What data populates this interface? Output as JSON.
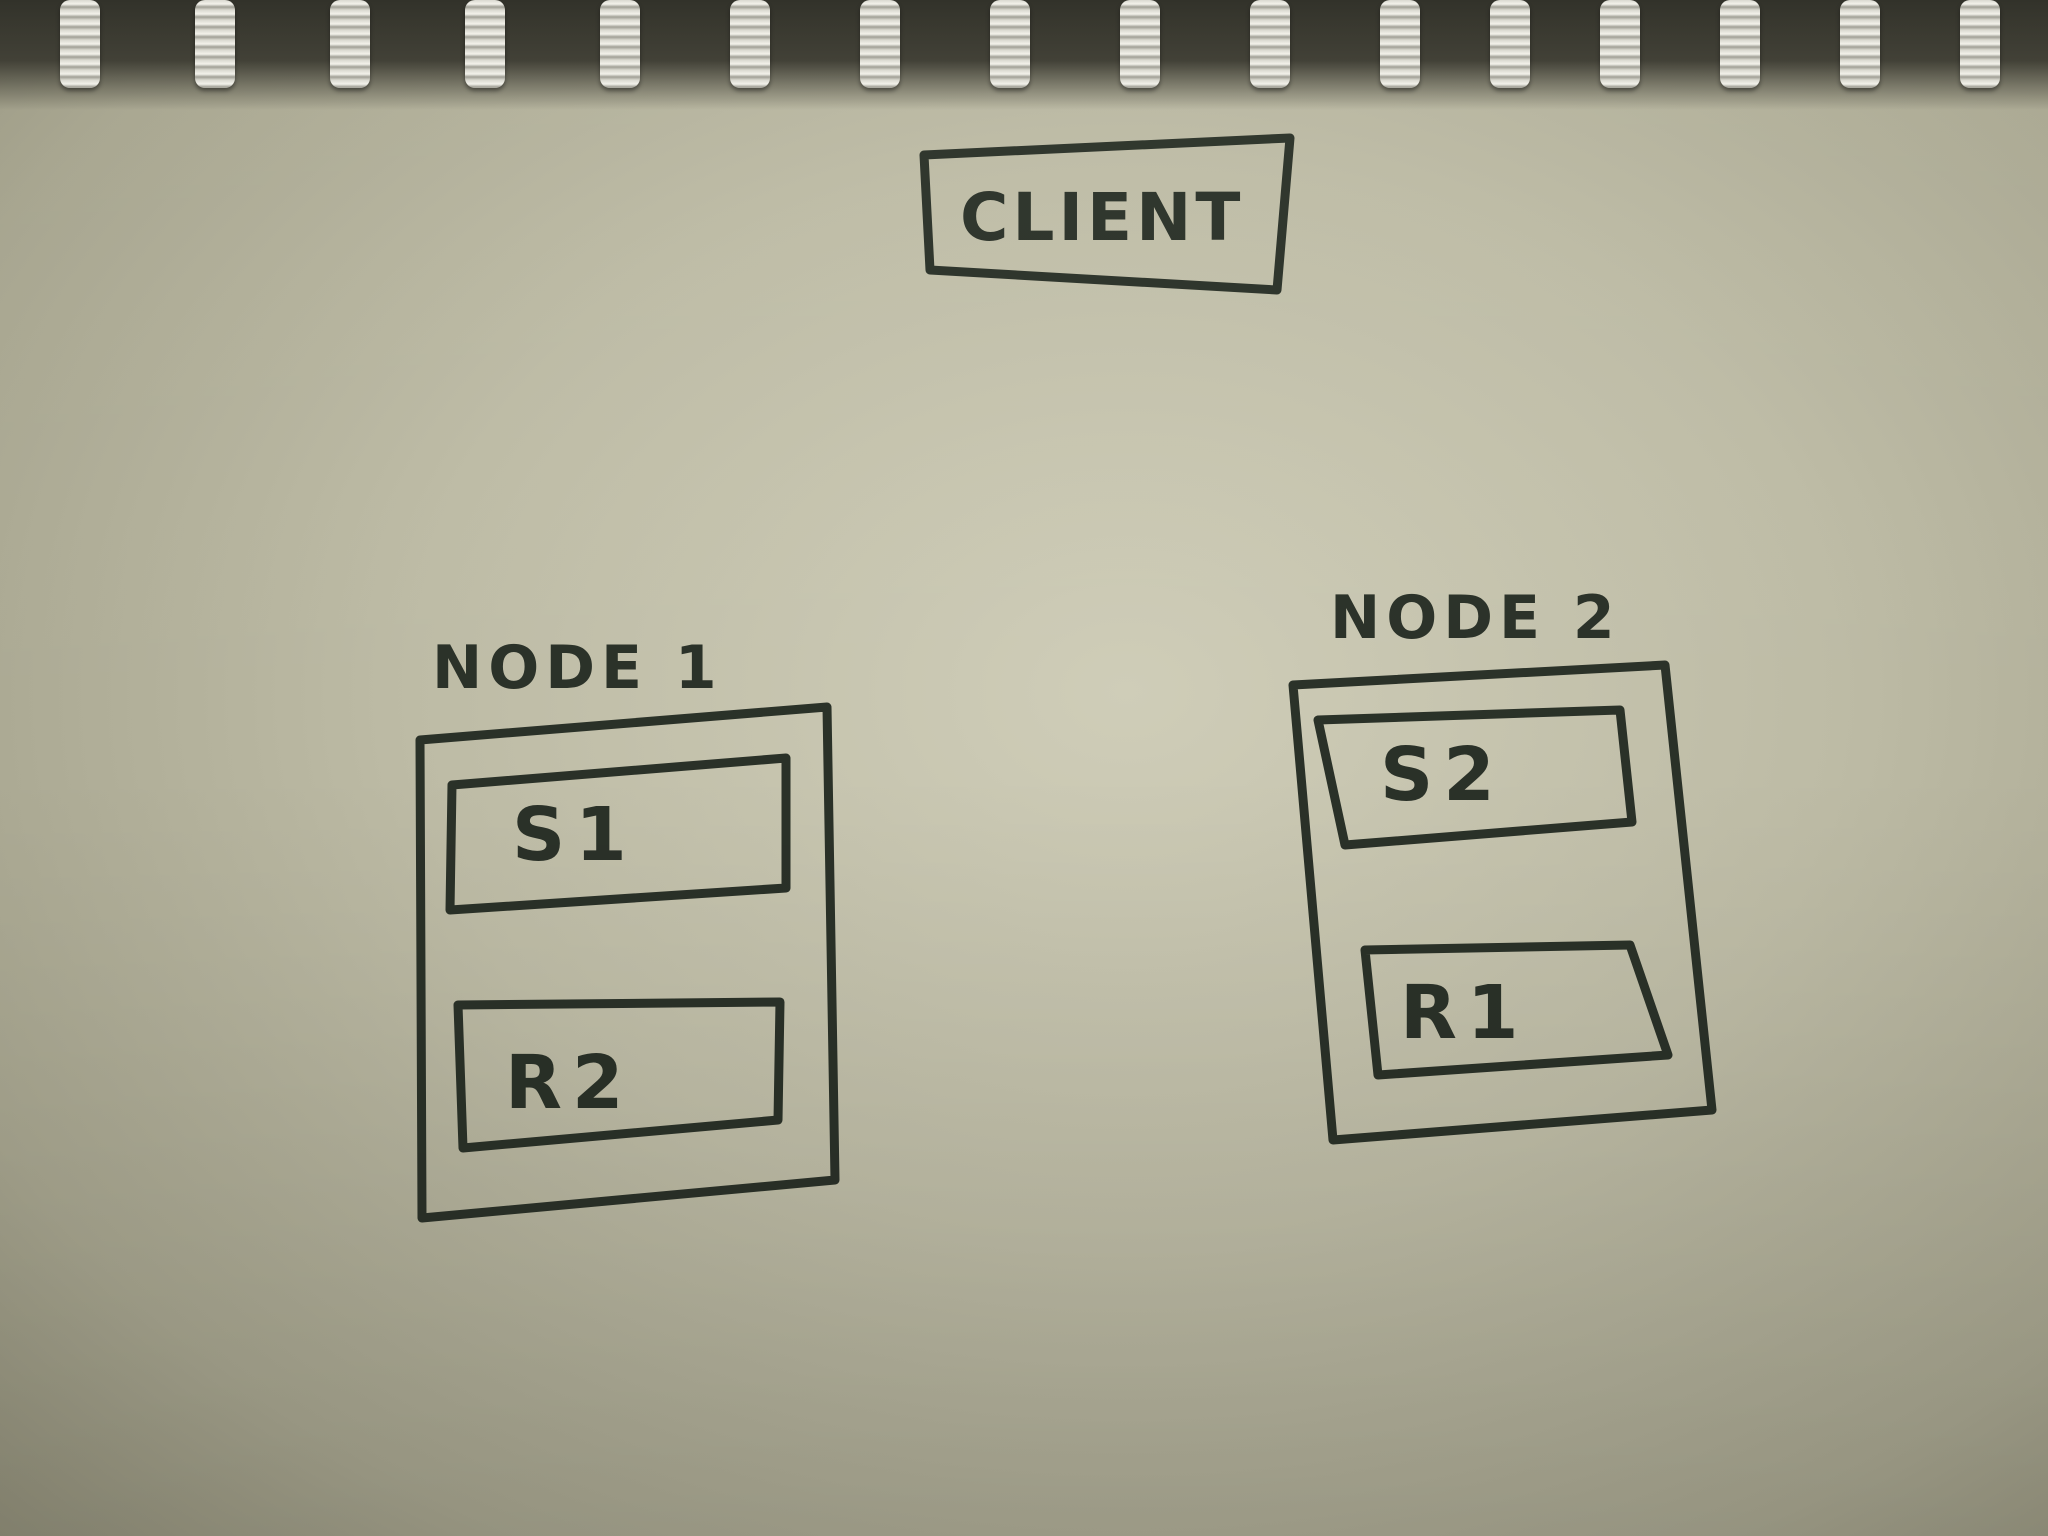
{
  "diagram": {
    "client_label": "CLIENT",
    "nodes": [
      {
        "label": "NODE 1",
        "slots": [
          "S1",
          "R2"
        ]
      },
      {
        "label": "NODE 2",
        "slots": [
          "S2",
          "R1"
        ]
      }
    ],
    "ink_color": "#2a3128",
    "paper_color": "#c4c2ad"
  }
}
